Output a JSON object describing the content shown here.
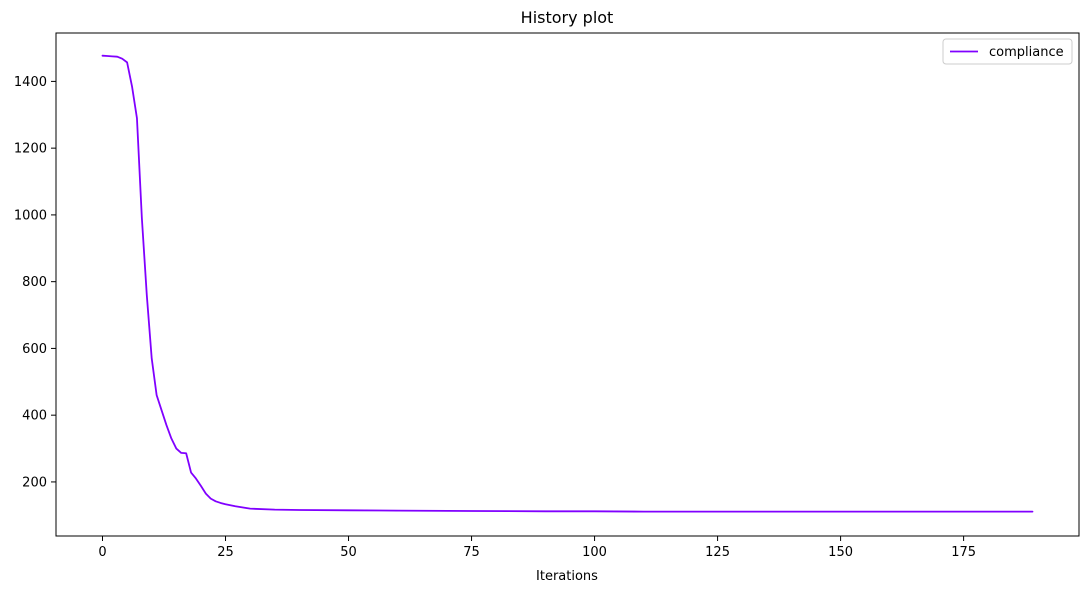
{
  "chart_data": {
    "type": "line",
    "title": "History plot",
    "xlabel": "Iterations",
    "ylabel": "",
    "xlim": [
      -9.45,
      198.45
    ],
    "ylim": [
      38,
      1545
    ],
    "xticks": [
      0,
      25,
      50,
      75,
      100,
      125,
      150,
      175
    ],
    "yticks": [
      200,
      400,
      600,
      800,
      1000,
      1200,
      1400
    ],
    "grid": false,
    "legend_position": "top-right",
    "series": [
      {
        "name": "compliance",
        "color": "#8000ff",
        "x": [
          0,
          1,
          2,
          3,
          4,
          5,
          6,
          7,
          8,
          9,
          10,
          11,
          12,
          13,
          14,
          15,
          16,
          17,
          18,
          19,
          20,
          21,
          22,
          23,
          24,
          25,
          27,
          30,
          35,
          40,
          50,
          60,
          75,
          90,
          100,
          110,
          125,
          150,
          175,
          189
        ],
        "y": [
          1477,
          1476,
          1475,
          1474,
          1468,
          1457,
          1385,
          1290,
          990,
          760,
          570,
          460,
          415,
          370,
          330,
          300,
          287,
          286,
          228,
          210,
          188,
          165,
          150,
          142,
          137,
          133,
          127,
          120,
          117,
          116,
          115,
          114,
          113,
          112,
          112,
          111,
          111,
          111,
          111,
          111
        ]
      }
    ]
  }
}
